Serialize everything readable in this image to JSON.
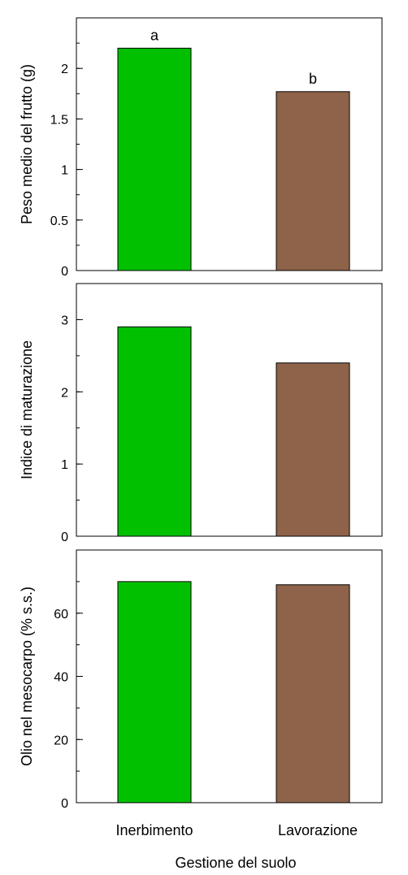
{
  "chart_data": [
    {
      "type": "bar",
      "categories": [
        "Inerbimento",
        "Lavorazione"
      ],
      "values": [
        2.2,
        1.77
      ],
      "ylabel": "Peso medio del frutto (g)",
      "ylim": [
        0,
        2.5
      ],
      "yticks": [
        0,
        0.5,
        1,
        1.5,
        2
      ],
      "ytick_labels": [
        "0",
        "0.5",
        "1",
        "1.5",
        "2"
      ],
      "yminor": 0.25,
      "annotations": [
        "a",
        "b"
      ],
      "colors": [
        "#00c000",
        "#8f634a"
      ],
      "grid": false
    },
    {
      "type": "bar",
      "categories": [
        "Inerbimento",
        "Lavorazione"
      ],
      "values": [
        2.9,
        2.4
      ],
      "ylabel": "Indice di maturazione",
      "ylim": [
        0,
        3.5
      ],
      "yticks": [
        0,
        1,
        2,
        3
      ],
      "ytick_labels": [
        "0",
        "1",
        "2",
        "3"
      ],
      "yminor": 0.5,
      "annotations": [],
      "colors": [
        "#00c000",
        "#8f634a"
      ],
      "grid": false
    },
    {
      "type": "bar",
      "categories": [
        "Inerbimento",
        "Lavorazione"
      ],
      "values": [
        70,
        69
      ],
      "ylabel": "Olio nel mesocarpo (% s.s.)",
      "ylim": [
        0,
        80
      ],
      "yticks": [
        0,
        20,
        40,
        60
      ],
      "ytick_labels": [
        "0",
        "20",
        "40",
        "60"
      ],
      "yminor": 10,
      "annotations": [],
      "colors": [
        "#00c000",
        "#8f634a"
      ],
      "grid": false
    }
  ],
  "xaxis": {
    "categories": [
      "Inerbimento",
      "Lavorazione"
    ],
    "label": "Gestione del suolo"
  }
}
